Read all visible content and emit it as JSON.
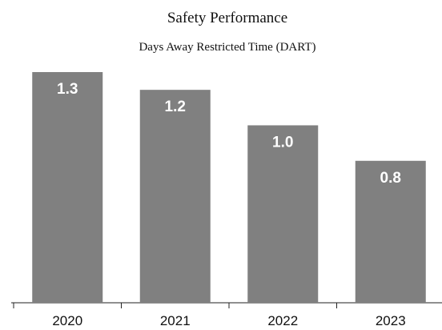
{
  "chart_data": {
    "type": "bar",
    "title": "Safety Performance",
    "subtitle": "Days Away Restricted Time (DART)",
    "categories": [
      "2020",
      "2021",
      "2022",
      "2023"
    ],
    "values": [
      1.3,
      1.2,
      1.0,
      0.8
    ],
    "value_labels": [
      "1.3",
      "1.2",
      "1.0",
      "0.8"
    ],
    "color": "#808080",
    "ylim": [
      0,
      1.3
    ]
  }
}
